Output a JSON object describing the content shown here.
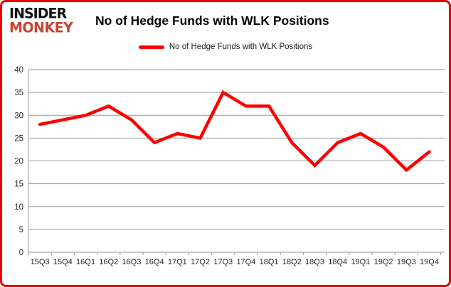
{
  "logo": {
    "line1": "INSIDER",
    "line2": "MONKEY"
  },
  "header": {
    "title": "No of Hedge Funds with WLK Positions"
  },
  "legend": {
    "label": "No of Hedge Funds with WLK Positions",
    "color": "#fe0000"
  },
  "chart_data": {
    "type": "line",
    "title": "No of Hedge Funds with WLK Positions",
    "categories": [
      "15Q3",
      "15Q4",
      "16Q1",
      "16Q2",
      "16Q3",
      "16Q4",
      "17Q1",
      "17Q2",
      "17Q3",
      "17Q4",
      "18Q1",
      "18Q2",
      "18Q3",
      "18Q4",
      "19Q1",
      "19Q2",
      "19Q3",
      "19Q4"
    ],
    "values": [
      28,
      29,
      30,
      32,
      29,
      24,
      26,
      25,
      35,
      32,
      32,
      24,
      19,
      24,
      26,
      23,
      18,
      22
    ],
    "xlabel": "",
    "ylabel": "",
    "ylim": [
      0,
      40
    ],
    "y_ticks": [
      0,
      5,
      10,
      15,
      20,
      25,
      30,
      35,
      40
    ],
    "grid": true,
    "legend_position": "top-center",
    "line_color": "#fe0000"
  },
  "colors": {
    "accent_red": "#fe0000",
    "logo_red": "#c8452e",
    "border_red": "#e40000",
    "grid_gray": "#999999",
    "tick_text": "#262626"
  }
}
